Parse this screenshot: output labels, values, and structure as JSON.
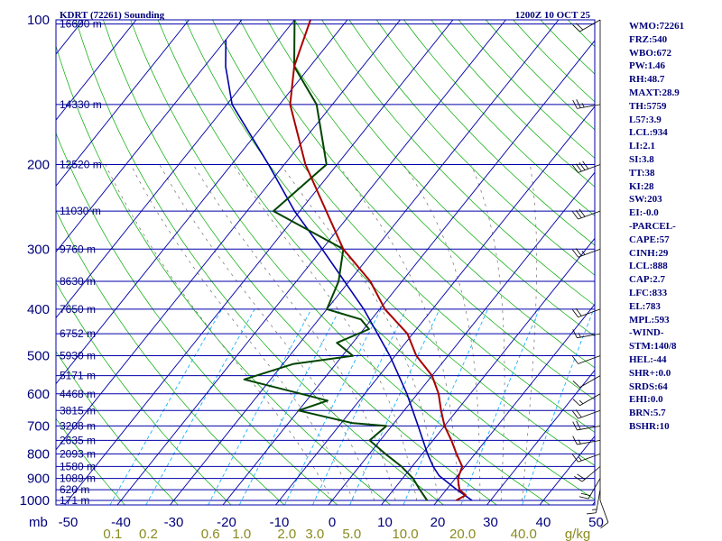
{
  "header": {
    "station": "KDRT (72261) Sounding",
    "time": "1200Z 10 OCT 25"
  },
  "colors": {
    "isobar": "#0000aa",
    "isotherm": "#0000aa",
    "dry_adiabat": "#00aa00",
    "moist_adiabat": "#6f6f6f",
    "mixing_ratio": "#00aaff",
    "temperature": "#aa0000",
    "dewpoint": "#004400",
    "parcel": "#0000aa",
    "label": "#00007a",
    "mix_label": "#8a8a20",
    "wind": "#000000"
  },
  "chart_data": {
    "type": "skew-t",
    "pressure_levels": [
      100,
      200,
      300,
      400,
      500,
      600,
      700,
      800,
      900,
      1000
    ],
    "pressure_tick_labels": [
      "100",
      "200",
      "300",
      "400",
      "500",
      "600",
      "700",
      "800",
      "900",
      "1000"
    ],
    "height_levels": [
      {
        "p": 102,
        "label": "16690 m"
      },
      {
        "p": 150,
        "label": "14330 m"
      },
      {
        "p": 200,
        "label": "12520 m"
      },
      {
        "p": 250,
        "label": "11030 m"
      },
      {
        "p": 300,
        "label": "9760 m"
      },
      {
        "p": 350,
        "label": "8630 m"
      },
      {
        "p": 400,
        "label": "7650 m"
      },
      {
        "p": 450,
        "label": "6752 m"
      },
      {
        "p": 500,
        "label": "5930 m"
      },
      {
        "p": 550,
        "label": "5171 m"
      },
      {
        "p": 600,
        "label": "4468 m"
      },
      {
        "p": 650,
        "label": "3815 m"
      },
      {
        "p": 700,
        "label": "3208 m"
      },
      {
        "p": 750,
        "label": "2635 m"
      },
      {
        "p": 800,
        "label": "2093 m"
      },
      {
        "p": 850,
        "label": "1580 m"
      },
      {
        "p": 900,
        "label": "1089 m"
      },
      {
        "p": 950,
        "label": "620 m"
      },
      {
        "p": 1000,
        "label": "171 m"
      }
    ],
    "x_unit_label": "mb",
    "temp_tick_values": [
      -50,
      -40,
      -30,
      -20,
      -10,
      0,
      10,
      20,
      30,
      40,
      50
    ],
    "temp_tick_labels": [
      "-50",
      "-40",
      "-30",
      "-20",
      "-10",
      "0",
      "10",
      "20",
      "30",
      "40",
      "50"
    ],
    "mixing_ratio_values": [
      0.1,
      0.2,
      0.6,
      1.0,
      2.0,
      3.0,
      5.0,
      10.0,
      20.0,
      40.0
    ],
    "mixing_ratio_labels": [
      "0.1",
      "0.2",
      "0.6",
      "1.0",
      "2.0",
      "3.0",
      "5.0",
      "10.0",
      "20.0",
      "40.0"
    ],
    "mixing_ratio_unit": "g/kg",
    "temperature_profile": [
      [
        1000,
        23.5
      ],
      [
        975,
        24.5
      ],
      [
        950,
        22.5
      ],
      [
        925,
        21.5
      ],
      [
        900,
        20.5
      ],
      [
        850,
        19.5
      ],
      [
        800,
        16.5
      ],
      [
        750,
        13.5
      ],
      [
        700,
        10.0
      ],
      [
        650,
        7.0
      ],
      [
        600,
        4.0
      ],
      [
        550,
        0.0
      ],
      [
        500,
        -6.0
      ],
      [
        450,
        -11.0
      ],
      [
        400,
        -19.0
      ],
      [
        350,
        -26.0
      ],
      [
        300,
        -36.0
      ],
      [
        250,
        -45.0
      ],
      [
        200,
        -56.0
      ],
      [
        150,
        -68.0
      ],
      [
        125,
        -73.0
      ],
      [
        100,
        -77.0
      ]
    ],
    "dewpoint_profile": [
      [
        1000,
        18.0
      ],
      [
        950,
        15.0
      ],
      [
        900,
        12.0
      ],
      [
        850,
        8.0
      ],
      [
        800,
        3.0
      ],
      [
        750,
        -2.0
      ],
      [
        700,
        -1.0
      ],
      [
        690,
        -8.0
      ],
      [
        650,
        -20.0
      ],
      [
        620,
        -16.0
      ],
      [
        600,
        -22.0
      ],
      [
        560,
        -35.0
      ],
      [
        520,
        -28.0
      ],
      [
        500,
        -18.0
      ],
      [
        470,
        -23.0
      ],
      [
        440,
        -19.0
      ],
      [
        420,
        -22.0
      ],
      [
        400,
        -30.0
      ],
      [
        350,
        -32.0
      ],
      [
        300,
        -36.0
      ],
      [
        250,
        -55.0
      ],
      [
        200,
        -52.0
      ],
      [
        150,
        -63.0
      ],
      [
        125,
        -73.0
      ],
      [
        100,
        -80.0
      ]
    ],
    "parcel_profile": [
      [
        1000,
        26.5
      ],
      [
        950,
        22.0
      ],
      [
        888,
        16.5
      ],
      [
        850,
        14.0
      ],
      [
        800,
        11.0
      ],
      [
        700,
        5.0
      ],
      [
        600,
        -2.0
      ],
      [
        500,
        -11.0
      ],
      [
        400,
        -23.0
      ],
      [
        300,
        -40.0
      ],
      [
        250,
        -51.0
      ],
      [
        200,
        -63.0
      ],
      [
        150,
        -79.0
      ],
      [
        125,
        -86.0
      ],
      [
        110,
        -90.0
      ]
    ],
    "wind_barbs": [
      [
        1000,
        160,
        10
      ],
      [
        950,
        190,
        15
      ],
      [
        900,
        210,
        20
      ],
      [
        850,
        230,
        20
      ],
      [
        800,
        250,
        15
      ],
      [
        750,
        260,
        15
      ],
      [
        700,
        260,
        20
      ],
      [
        650,
        250,
        20
      ],
      [
        600,
        240,
        15
      ],
      [
        550,
        240,
        10
      ],
      [
        500,
        250,
        10
      ],
      [
        450,
        260,
        15
      ],
      [
        400,
        250,
        20
      ],
      [
        300,
        250,
        25
      ],
      [
        250,
        250,
        30
      ],
      [
        200,
        250,
        40
      ],
      [
        150,
        260,
        25
      ],
      [
        100,
        240,
        20
      ]
    ]
  },
  "indices": [
    "WMO:72261",
    "FRZ:540",
    "WBO:672",
    "PW:1.46",
    "RH:48.7",
    "MAXT:28.9",
    "TH:5759",
    "L57:3.9",
    "LCL:934",
    "LI:2.1",
    "SI:3.8",
    "TT:38",
    "KI:28",
    "SW:203",
    "EI:-0.0",
    "-PARCEL-",
    "CAPE:57",
    "CINH:29",
    "LCL:888",
    "CAP:2.7",
    "LFC:833",
    "EL:783",
    "MPL:593",
    "-WIND-",
    "STM:140/8",
    "HEL:-44",
    "SHR+:0.0",
    "SRDS:64",
    "EHI:0.0",
    "BRN:5.7",
    "BSHR:10"
  ]
}
